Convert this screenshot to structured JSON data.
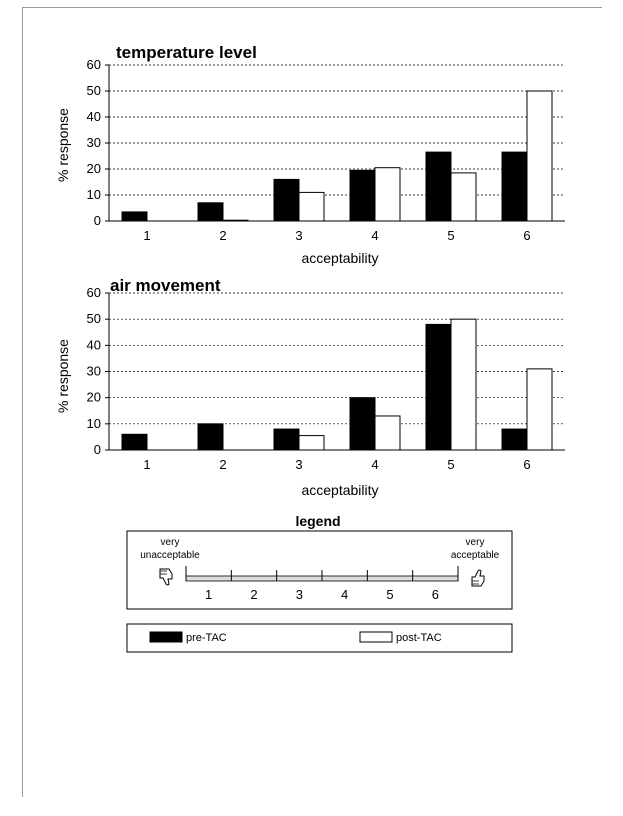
{
  "chart_data": [
    {
      "type": "bar",
      "title": "temperature  level",
      "xlabel": "acceptability",
      "ylabel": "% response",
      "categories": [
        "1",
        "2",
        "3",
        "4",
        "5",
        "6"
      ],
      "ylim": [
        0,
        60
      ],
      "yticks": [
        "0",
        "10",
        "20",
        "30",
        "40",
        "50",
        "60"
      ],
      "grid": true,
      "series": [
        {
          "name": "pre-TAC",
          "values": [
            3.5,
            7,
            16,
            19.5,
            26.5,
            26.5
          ],
          "color": "#000000"
        },
        {
          "name": "post-TAC",
          "values": [
            0,
            0.3,
            11,
            20.5,
            18.5,
            50
          ],
          "color": "#ffffff"
        }
      ]
    },
    {
      "type": "bar",
      "title": "air movement",
      "xlabel": "acceptability",
      "ylabel": "% response",
      "categories": [
        "1",
        "2",
        "3",
        "4",
        "5",
        "6"
      ],
      "ylim": [
        0,
        60
      ],
      "yticks": [
        "0",
        "10",
        "20",
        "30",
        "40",
        "50",
        "60"
      ],
      "grid": true,
      "series": [
        {
          "name": "pre-TAC",
          "values": [
            6,
            10,
            8,
            20,
            48,
            8
          ],
          "color": "#000000"
        },
        {
          "name": "post-TAC",
          "values": [
            0,
            0,
            5.5,
            13,
            50,
            31
          ],
          "color": "#ffffff"
        }
      ]
    }
  ],
  "legend": {
    "title": "legend",
    "left_top": "very",
    "left_bottom": "unacceptable",
    "right_top": "very",
    "right_bottom": "acceptable",
    "scale": [
      "1",
      "2",
      "3",
      "4",
      "5",
      "6"
    ],
    "left_icon": "thumbs-down-icon",
    "right_icon": "thumbs-up-icon",
    "pre_label": "pre-TAC",
    "post_label": "post-TAC"
  }
}
